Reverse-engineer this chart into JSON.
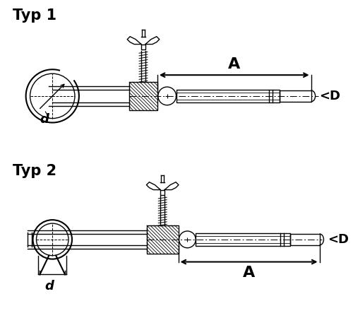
{
  "bg_color": "#ffffff",
  "line_color": "#000000",
  "title1": "Typ 1",
  "title2": "Typ 2",
  "label_A": "A",
  "label_D": "<D",
  "label_d": "d",
  "title_fontsize": 15,
  "label_fontsize": 13
}
